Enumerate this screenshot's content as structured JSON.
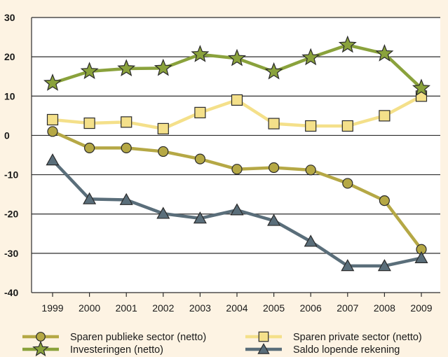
{
  "chart_data": {
    "type": "line",
    "title": "",
    "xlabel": "",
    "ylabel": "",
    "x": [
      "1999",
      "2000",
      "2001",
      "2002",
      "2003",
      "2004",
      "2005",
      "2006",
      "2007",
      "2008",
      "2009"
    ],
    "ylim": [
      -40,
      30
    ],
    "yticks": [
      "30",
      "20",
      "10",
      "0",
      "-10",
      "-20",
      "-30",
      "-40"
    ],
    "ytick_values": [
      30,
      20,
      10,
      0,
      -10,
      -20,
      -30,
      -40
    ],
    "grid": true,
    "legend_position": "bottom",
    "series": [
      {
        "name": "Sparen publieke sector (netto)",
        "marker": "circle",
        "color": "#b5a845",
        "marker_fill": "#b5a845",
        "values": [
          1,
          -3.2,
          -3.2,
          -4.1,
          -6,
          -8.6,
          -8.2,
          -8.8,
          -12.2,
          -16.6,
          -29
        ]
      },
      {
        "name": "Sparen private sector (netto)",
        "marker": "square",
        "color": "#f4e08a",
        "marker_fill": "#f4e08a",
        "values": [
          4,
          3.1,
          3.4,
          1.7,
          5.8,
          9,
          3,
          2.4,
          2.4,
          5,
          10
        ]
      },
      {
        "name": "Investeringen (netto)",
        "marker": "star",
        "color": "#8aa23c",
        "marker_fill": "#8aa23c",
        "values": [
          13.3,
          16.3,
          17,
          17.1,
          20.6,
          19.6,
          16.2,
          19.8,
          23,
          20.8,
          12
        ]
      },
      {
        "name": "Saldo lopende rekening",
        "marker": "triangle",
        "color": "#5a6e7a",
        "marker_fill": "#5a6e7a",
        "values": [
          -6.3,
          -16.2,
          -16.4,
          -19.9,
          -21.1,
          -19,
          -21.7,
          -27,
          -33.2,
          -33.2,
          -31.2
        ]
      }
    ],
    "legend_order": [
      0,
      1,
      2,
      3
    ]
  }
}
